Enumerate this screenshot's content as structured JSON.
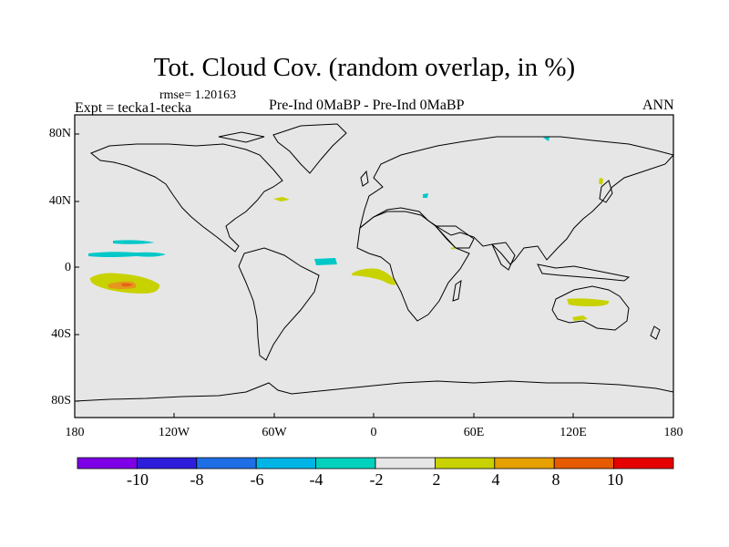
{
  "title": "Tot. Cloud Cov. (random overlap, in %)",
  "rmse_label": "rmse= 1.20163",
  "expt_label": "Expt = tecka1-tecka",
  "center_label": "Pre-Ind 0MaBP - Pre-Ind 0MaBP",
  "season_label": "ANN",
  "y_ticks": [
    "80N",
    "40N",
    "0",
    "40S",
    "80S"
  ],
  "x_ticks": [
    "180",
    "120W",
    "60W",
    "0",
    "60E",
    "120E",
    "180"
  ],
  "colorbar": {
    "labels": [
      "-10",
      "-8",
      "-6",
      "-4",
      "-2",
      "2",
      "4",
      "8",
      "10"
    ],
    "colors": [
      "#7d00e6",
      "#2d1edc",
      "#1e6ee6",
      "#00b4e6",
      "#00d2be",
      "#e6e6e6",
      "#c8d200",
      "#e6a000",
      "#e65a00",
      "#e60000"
    ]
  },
  "map_colors": {
    "background": "#e6e6e6",
    "coast": "#000000",
    "cyan": "#00c8c8",
    "yellow": "#c8d200",
    "orange": "#e6961e",
    "red": "#e66414"
  }
}
